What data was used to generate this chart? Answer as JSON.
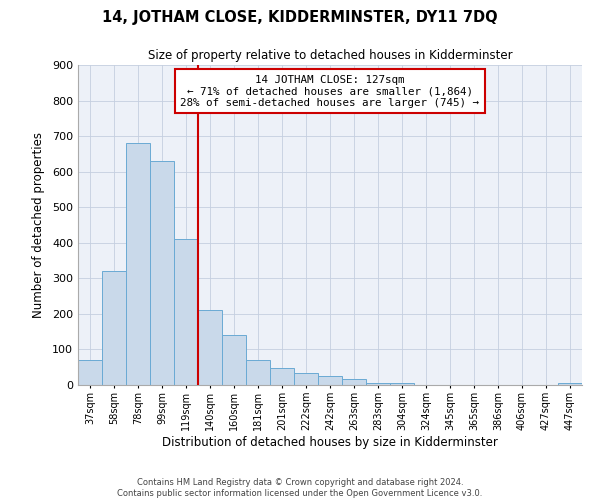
{
  "title": "14, JOTHAM CLOSE, KIDDERMINSTER, DY11 7DQ",
  "subtitle": "Size of property relative to detached houses in Kidderminster",
  "xlabel": "Distribution of detached houses by size in Kidderminster",
  "ylabel": "Number of detached properties",
  "bin_labels": [
    "37sqm",
    "58sqm",
    "78sqm",
    "99sqm",
    "119sqm",
    "140sqm",
    "160sqm",
    "181sqm",
    "201sqm",
    "222sqm",
    "242sqm",
    "263sqm",
    "283sqm",
    "304sqm",
    "324sqm",
    "345sqm",
    "365sqm",
    "386sqm",
    "406sqm",
    "427sqm",
    "447sqm"
  ],
  "bar_heights": [
    70,
    320,
    680,
    630,
    410,
    210,
    140,
    70,
    48,
    35,
    25,
    18,
    7,
    5,
    0,
    0,
    0,
    0,
    0,
    0,
    5
  ],
  "bar_color": "#c9d9ea",
  "bar_edgecolor": "#6aaad4",
  "grid_color": "#c5cfe0",
  "background_color": "#edf1f8",
  "vline_x": 4.5,
  "vline_color": "#cc0000",
  "annotation_title": "14 JOTHAM CLOSE: 127sqm",
  "annotation_line1": "← 71% of detached houses are smaller (1,864)",
  "annotation_line2": "28% of semi-detached houses are larger (745) →",
  "annotation_box_edgecolor": "#cc0000",
  "ylim": [
    0,
    900
  ],
  "yticks": [
    0,
    100,
    200,
    300,
    400,
    500,
    600,
    700,
    800,
    900
  ],
  "footer_line1": "Contains HM Land Registry data © Crown copyright and database right 2024.",
  "footer_line2": "Contains public sector information licensed under the Open Government Licence v3.0.",
  "title_fontsize": 10.5,
  "subtitle_fontsize": 8.5
}
